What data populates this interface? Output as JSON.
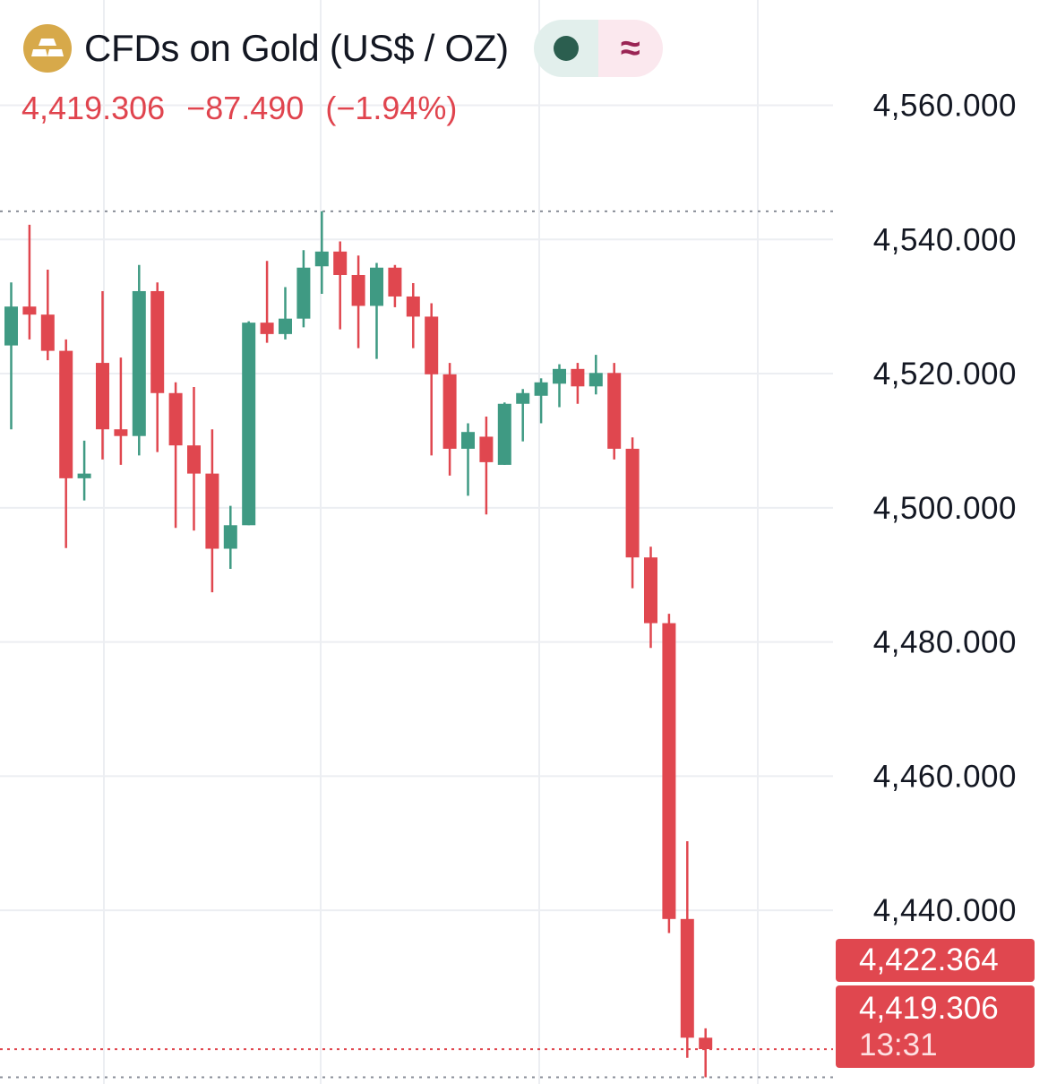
{
  "header": {
    "icon": "gold-bars-icon",
    "title": "CFDs on Gold (US$ / OZ)",
    "toggle": {
      "left_icon": "dot-icon",
      "right_symbol": "≈"
    }
  },
  "quote": {
    "price": "4,419.306",
    "change": "−87.490",
    "change_pct": "(−1.94%)"
  },
  "labels": {
    "upper": "4,422.364",
    "lower": "4,419.306",
    "countdown": "13:31"
  },
  "colors": {
    "up": "#3f9a83",
    "down": "#e0474f",
    "grid": "#eceef2",
    "text": "#131722",
    "accent_red": "#e0444e"
  },
  "chart_data": {
    "type": "candlestick",
    "y_ticks": [
      "4,560.000",
      "4,540.000",
      "4,520.000",
      "4,500.000",
      "4,480.000",
      "4,460.000",
      "4,440.000"
    ],
    "y_tick_values": [
      4560,
      4540,
      4520,
      4500,
      4480,
      4460,
      4440
    ],
    "ylim": [
      4414.1,
      4575.7
    ],
    "grid": true,
    "reference_lines": {
      "high": 4544.2,
      "current": 4419.3,
      "low": 4415.1
    },
    "candles": [
      [
        4524.2,
        4533.6,
        4511.7,
        4530.0
      ],
      [
        4530.0,
        4542.2,
        4525.1,
        4528.8
      ],
      [
        4528.8,
        4535.5,
        4522.0,
        4523.4
      ],
      [
        4523.4,
        4525.1,
        4494.0,
        4504.4
      ],
      [
        4504.4,
        4510.0,
        4501.1,
        4505.1
      ],
      [
        4521.6,
        4532.3,
        4507.2,
        4511.7
      ],
      [
        4511.7,
        4522.4,
        4506.4,
        4510.7
      ],
      [
        4510.7,
        4536.2,
        4507.8,
        4532.3
      ],
      [
        4532.3,
        4533.6,
        4508.3,
        4517.1
      ],
      [
        4517.1,
        4518.7,
        4497.0,
        4509.3
      ],
      [
        4509.3,
        4518.0,
        4496.6,
        4505.1
      ],
      [
        4505.1,
        4511.7,
        4487.4,
        4493.9
      ],
      [
        4493.9,
        4500.3,
        4490.9,
        4497.4
      ],
      [
        4497.4,
        4527.8,
        4497.4,
        4527.6
      ],
      [
        4527.6,
        4536.8,
        4524.6,
        4525.9
      ],
      [
        4525.9,
        4532.9,
        4525.1,
        4528.2
      ],
      [
        4528.2,
        4538.4,
        4526.9,
        4535.8
      ],
      [
        4536.0,
        4544.2,
        4531.9,
        4538.2
      ],
      [
        4538.2,
        4539.7,
        4526.6,
        4534.7
      ],
      [
        4534.7,
        4537.6,
        4523.8,
        4530.1
      ],
      [
        4530.1,
        4536.5,
        4522.2,
        4535.8
      ],
      [
        4535.8,
        4536.2,
        4529.9,
        4531.5
      ],
      [
        4531.5,
        4533.5,
        4523.8,
        4528.5
      ],
      [
        4528.5,
        4530.5,
        4507.8,
        4519.9
      ],
      [
        4519.9,
        4521.6,
        4504.8,
        4508.8
      ],
      [
        4508.8,
        4512.6,
        4501.8,
        4511.3
      ],
      [
        4510.6,
        4513.6,
        4499.0,
        4506.8
      ],
      [
        4506.4,
        4515.7,
        4506.4,
        4515.5
      ],
      [
        4515.5,
        4517.7,
        4509.9,
        4517.1
      ],
      [
        4516.7,
        4519.3,
        4512.6,
        4518.7
      ],
      [
        4518.5,
        4521.4,
        4515.0,
        4520.7
      ],
      [
        4520.7,
        4521.6,
        4515.5,
        4518.1
      ],
      [
        4518.1,
        4522.8,
        4516.9,
        4520.1
      ],
      [
        4520.1,
        4521.6,
        4507.2,
        4508.8
      ],
      [
        4508.8,
        4510.5,
        4488.0,
        4492.6
      ],
      [
        4492.6,
        4494.2,
        4479.1,
        4482.8
      ],
      [
        4482.8,
        4484.2,
        4436.6,
        4438.7
      ],
      [
        4438.7,
        4450.3,
        4418.0,
        4421.0
      ],
      [
        4421.0,
        4422.4,
        4415.1,
        4419.3
      ]
    ]
  }
}
